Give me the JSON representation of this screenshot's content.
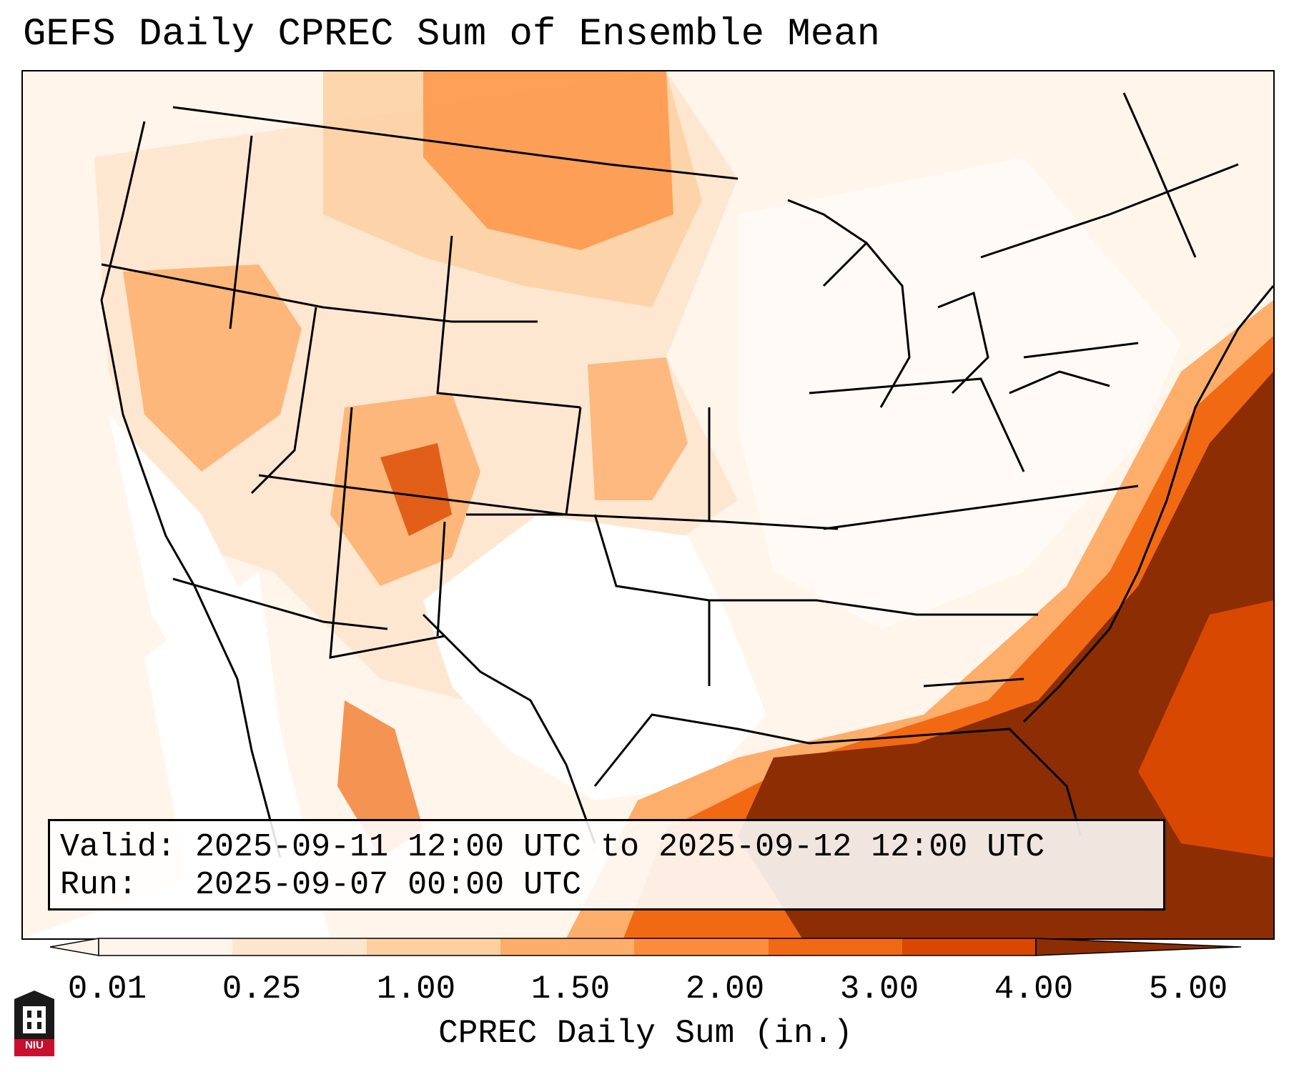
{
  "title": "GEFS Daily CPREC Sum of Ensemble Mean",
  "info": {
    "valid_label": "Valid:",
    "valid_value": "2025-09-11 12:00 UTC to 2025-09-12 12:00 UTC",
    "run_label": "Run:",
    "run_value": "2025-09-07 00:00 UTC"
  },
  "colorbar": {
    "label": "CPREC Daily Sum (in.)",
    "ticks": [
      "0.01",
      "0.25",
      "1.00",
      "1.50",
      "2.00",
      "3.00",
      "4.00",
      "5.00"
    ],
    "colors": [
      "#fff5eb",
      "#fee6ce",
      "#fdd0a2",
      "#fdae6b",
      "#fd8d3c",
      "#f16913",
      "#d94801",
      "#8c2d04"
    ]
  },
  "logo": {
    "text": "NIU",
    "color": "#c8102e"
  }
}
